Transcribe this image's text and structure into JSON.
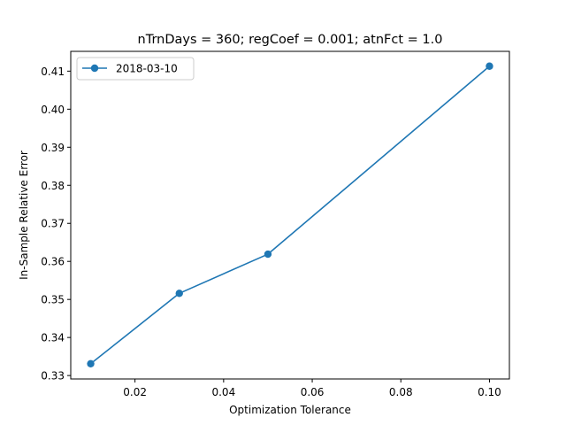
{
  "chart_data": {
    "type": "line",
    "title": "nTrnDays = 360; regCoef = 0.001; atnFct = 1.0",
    "xlabel": "Optimization Tolerance",
    "ylabel": "In-Sample Relative Error",
    "xlim": [
      0.0055,
      0.1045
    ],
    "ylim": [
      0.3291,
      0.4152
    ],
    "xticks": [
      0.02,
      0.04,
      0.06,
      0.08,
      0.1
    ],
    "xtick_labels": [
      "0.02",
      "0.04",
      "0.06",
      "0.08",
      "0.10"
    ],
    "yticks": [
      0.33,
      0.34,
      0.35,
      0.36,
      0.37,
      0.38,
      0.39,
      0.4,
      0.41
    ],
    "ytick_labels": [
      "0.33",
      "0.34",
      "0.35",
      "0.36",
      "0.37",
      "0.38",
      "0.39",
      "0.40",
      "0.41"
    ],
    "grid": false,
    "legend_position": "top-left",
    "series": [
      {
        "name": "2018-03-10",
        "color": "#1f77b4",
        "marker": "circle",
        "x": [
          0.01,
          0.03,
          0.05,
          0.1
        ],
        "y": [
          0.3331,
          0.3516,
          0.3619,
          0.4113
        ]
      }
    ]
  }
}
